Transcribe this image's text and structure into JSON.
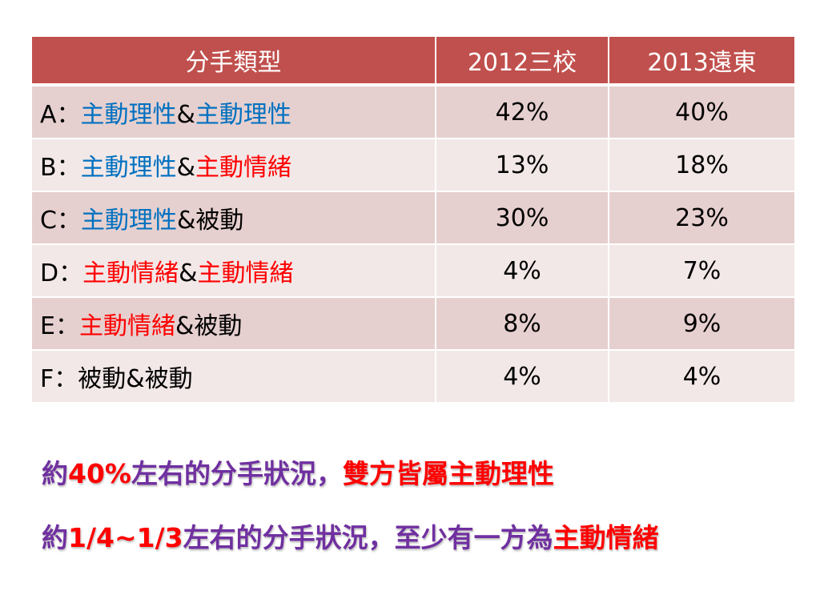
{
  "table": {
    "headers": [
      "分手類型",
      "2012三校",
      "2013遠東"
    ],
    "rows": [
      {
        "prefix": "A：",
        "parts": [
          {
            "text": "主動理性",
            "color": "blue"
          },
          {
            "text": "&",
            "color": "black"
          },
          {
            "text": "主動理性",
            "color": "blue"
          }
        ],
        "v2012": "42%",
        "v2013": "40%"
      },
      {
        "prefix": "B：",
        "parts": [
          {
            "text": "主動理性",
            "color": "blue"
          },
          {
            "text": "&",
            "color": "black"
          },
          {
            "text": "主動情緒",
            "color": "red"
          }
        ],
        "v2012": "13%",
        "v2013": "18%"
      },
      {
        "prefix": "C：",
        "parts": [
          {
            "text": "主動理性",
            "color": "blue"
          },
          {
            "text": "&被動",
            "color": "black"
          }
        ],
        "v2012": "30%",
        "v2013": "23%"
      },
      {
        "prefix": "D：",
        "parts": [
          {
            "text": "主動情緒",
            "color": "red"
          },
          {
            "text": "&",
            "color": "black"
          },
          {
            "text": "主動情緒",
            "color": "red"
          }
        ],
        "v2012": "4%",
        "v2013": "7%"
      },
      {
        "prefix": "E：",
        "parts": [
          {
            "text": "主動情緒",
            "color": "red"
          },
          {
            "text": "&被動",
            "color": "black"
          }
        ],
        "v2012": "8%",
        "v2013": "9%"
      },
      {
        "prefix": "F：",
        "parts": [
          {
            "text": "被動&被動",
            "color": "black"
          }
        ],
        "v2012": "4%",
        "v2013": "4%"
      }
    ]
  },
  "summary": {
    "line1": [
      {
        "text": "約",
        "color": "purple"
      },
      {
        "text": "40%",
        "color": "red"
      },
      {
        "text": "左右的分手狀況，",
        "color": "purple"
      },
      {
        "text": "雙方皆屬",
        "color": "red"
      },
      {
        "text": "主動理性",
        "color": "red"
      }
    ],
    "line2": [
      {
        "text": "約",
        "color": "purple"
      },
      {
        "text": "1/4~1/3",
        "color": "red"
      },
      {
        "text": "左右的分手狀況，至少有一方為",
        "color": "purple"
      },
      {
        "text": "主動情緒",
        "color": "red"
      }
    ]
  },
  "colors": {
    "header_bg": "#c0504d",
    "row_odd_bg": "#e6d0cf",
    "row_even_bg": "#f2e8e7",
    "blue_text": "#0070c0",
    "red_text": "#ff0000",
    "purple_text": "#7030a0"
  }
}
